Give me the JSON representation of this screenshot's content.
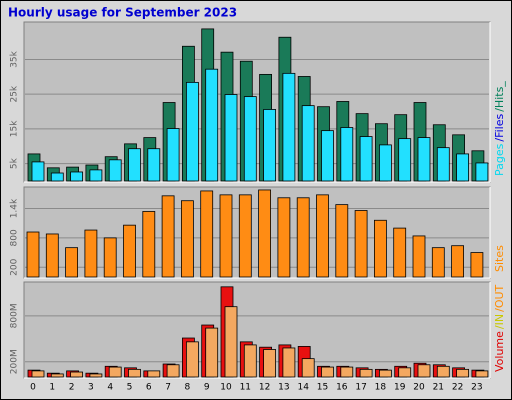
{
  "chart_data": [
    {
      "type": "bar",
      "title": "Hourly usage for September 2023",
      "legend": [
        {
          "text": "Pages",
          "color": "#00d8f0"
        },
        {
          "text": "/Files",
          "color": "#0000e0"
        },
        {
          "text": "/Hits_",
          "color": "#00805a"
        }
      ],
      "series": [
        {
          "color": "#1a7a58",
          "values": [
            7800,
            3800,
            4000,
            4600,
            7000,
            10700,
            12500,
            22600,
            38800,
            43800,
            37100,
            34500,
            30700,
            41400,
            30100,
            21400,
            22900,
            19400,
            16500,
            19100,
            22600,
            16200,
            13300,
            8700
          ]
        },
        {
          "color": "#22e0ff",
          "values": [
            5500,
            2300,
            2600,
            3200,
            6100,
            9300,
            9300,
            15100,
            28400,
            32200,
            24900,
            24300,
            20600,
            31000,
            21700,
            14500,
            15400,
            12800,
            10400,
            12200,
            12500,
            9600,
            7800,
            5200
          ]
        }
      ],
      "ylim": [
        0,
        45500
      ],
      "yticks": [
        {
          "value": 5000,
          "label": "5k"
        },
        {
          "value": 15000,
          "label": "15k"
        },
        {
          "value": 25000,
          "label": "25k"
        },
        {
          "value": 35000,
          "label": "35k"
        }
      ],
      "grid": true
    },
    {
      "type": "bar",
      "legend": [
        {
          "text": "Sites",
          "color": "#ff8c00"
        }
      ],
      "series": [
        {
          "color": "#ff8c14",
          "values": [
            920,
            880,
            600,
            960,
            800,
            1060,
            1340,
            1660,
            1560,
            1760,
            1680,
            1680,
            1780,
            1620,
            1620,
            1680,
            1480,
            1360,
            1160,
            1000,
            840,
            600,
            640,
            500
          ]
        }
      ],
      "ylim": [
        0,
        1820
      ],
      "yticks": [
        200,
        800,
        {
          "value": 1400,
          "label": "1.4k"
        }
      ],
      "grid": true
    },
    {
      "type": "bar",
      "legend": [
        {
          "text": "Volume",
          "color": "#e00000"
        },
        {
          "text": "/IN",
          "color": "#c8c800"
        },
        {
          "text": "/OUT",
          "color": "#ff8c00"
        }
      ],
      "categories": [
        "0",
        "1",
        "2",
        "3",
        "4",
        "5",
        "6",
        "7",
        "8",
        "9",
        "10",
        "11",
        "12",
        "13",
        "14",
        "15",
        "16",
        "17",
        "18",
        "19",
        "20",
        "21",
        "22",
        "23"
      ],
      "series": [
        {
          "color": "#e81010",
          "values": [
            90,
            50,
            80,
            50,
            140,
            120,
            80,
            170,
            510,
            680,
            1180,
            460,
            390,
            420,
            400,
            140,
            140,
            120,
            100,
            140,
            180,
            160,
            120,
            90
          ]
        },
        {
          "color": "#f4a860",
          "values": [
            80,
            40,
            65,
            40,
            130,
            100,
            80,
            160,
            460,
            640,
            920,
            420,
            360,
            380,
            240,
            130,
            130,
            100,
            90,
            120,
            160,
            140,
            100,
            80
          ]
        }
      ],
      "ylim": [
        0,
        1230
      ],
      "yticks": [
        {
          "value": 200,
          "label": "200M"
        },
        {
          "value": 800,
          "label": "800M"
        }
      ],
      "grid": true
    }
  ]
}
